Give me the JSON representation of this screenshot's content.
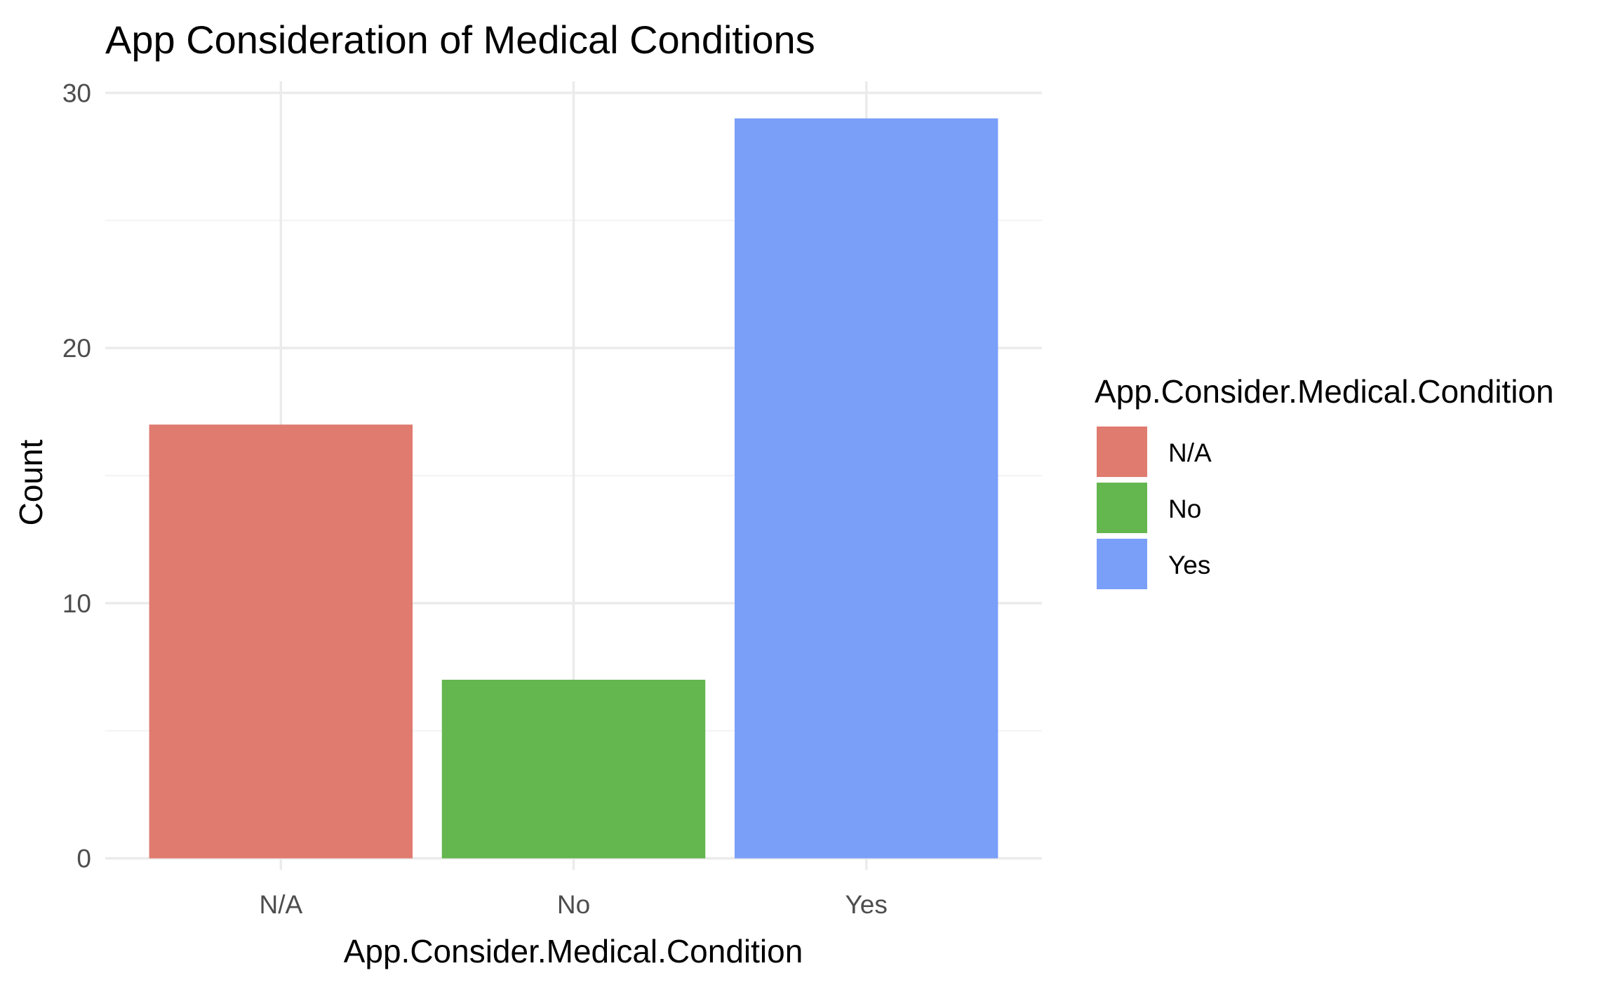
{
  "chart_data": {
    "type": "bar",
    "title": "App Consideration of Medical Conditions",
    "xlabel": "App.Consider.Medical.Condition",
    "ylabel": "Count",
    "categories": [
      "N/A",
      "No",
      "Yes"
    ],
    "values": [
      17,
      7,
      29
    ],
    "colors": [
      "#E07B70",
      "#64B64F",
      "#7A9FF8"
    ],
    "ylim": [
      0,
      30
    ],
    "yticks": [
      0,
      10,
      20,
      30
    ],
    "grid": true,
    "legend": {
      "title": "App.Consider.Medical.Condition",
      "placement": "right",
      "entries": [
        "N/A",
        "No",
        "Yes"
      ]
    }
  }
}
